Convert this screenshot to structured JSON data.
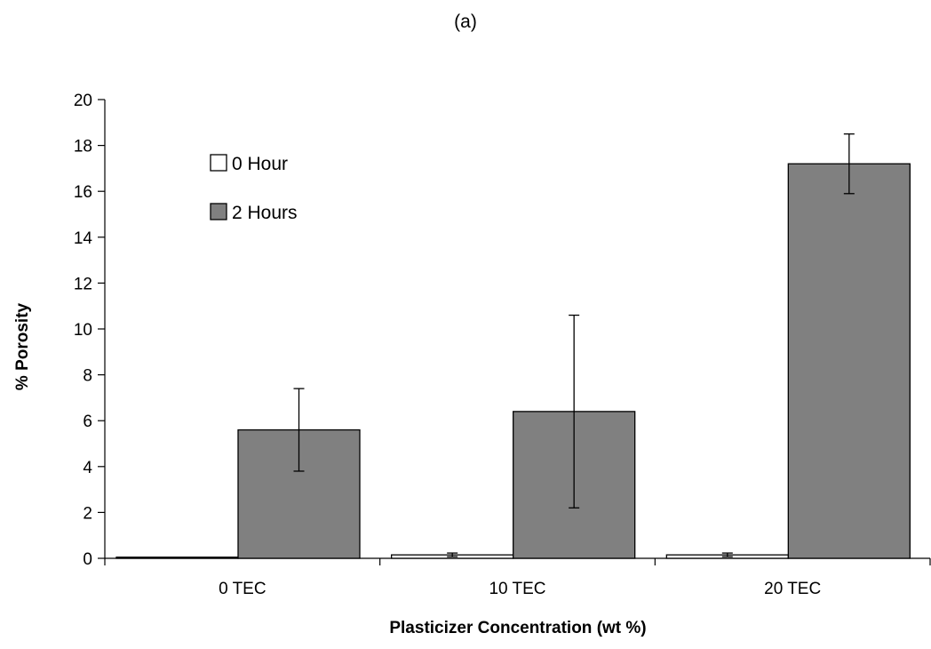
{
  "panel_label": "(a)",
  "chart_data": {
    "type": "bar",
    "title": "",
    "xlabel": "Plasticizer Concentration (wt %)",
    "ylabel": "% Porosity",
    "ylim": [
      0,
      20
    ],
    "yticks": [
      0,
      2,
      4,
      6,
      8,
      10,
      12,
      14,
      16,
      18,
      20
    ],
    "categories": [
      "0 TEC",
      "10 TEC",
      "20 TEC"
    ],
    "grid": false,
    "legend_position": "top-left",
    "series": [
      {
        "name": "0 Hour",
        "color": "#ffffff",
        "values": [
          0.05,
          0.15,
          0.15
        ],
        "error": [
          0,
          0.08,
          0.08
        ]
      },
      {
        "name": "2 Hours",
        "color": "#808080",
        "values": [
          5.6,
          6.4,
          17.2
        ],
        "error": [
          1.8,
          4.2,
          1.3
        ]
      }
    ]
  }
}
